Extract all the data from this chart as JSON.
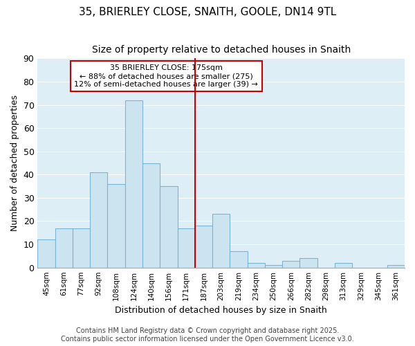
{
  "title": "35, BRIERLEY CLOSE, SNAITH, GOOLE, DN14 9TL",
  "subtitle": "Size of property relative to detached houses in Snaith",
  "xlabel": "Distribution of detached houses by size in Snaith",
  "ylabel": "Number of detached properties",
  "categories": [
    "45sqm",
    "61sqm",
    "77sqm",
    "92sqm",
    "108sqm",
    "124sqm",
    "140sqm",
    "156sqm",
    "171sqm",
    "187sqm",
    "203sqm",
    "219sqm",
    "234sqm",
    "250sqm",
    "266sqm",
    "282sqm",
    "298sqm",
    "313sqm",
    "329sqm",
    "345sqm",
    "361sqm"
  ],
  "values": [
    12,
    17,
    17,
    41,
    36,
    72,
    45,
    35,
    17,
    18,
    23,
    7,
    2,
    1,
    3,
    4,
    0,
    2,
    0,
    0,
    1
  ],
  "bar_color": "#cce4f0",
  "bar_edge_color": "#7ab4d4",
  "vline_x_index": 9,
  "vline_color": "#cc0000",
  "ylim": [
    0,
    90
  ],
  "yticks": [
    0,
    10,
    20,
    30,
    40,
    50,
    60,
    70,
    80,
    90
  ],
  "annotation_text": "35 BRIERLEY CLOSE: 175sqm\n← 88% of detached houses are smaller (275)\n12% of semi-detached houses are larger (39) →",
  "annotation_box_color": "#ffffff",
  "annotation_box_edge_color": "#cc0000",
  "footer_text": "Contains HM Land Registry data © Crown copyright and database right 2025.\nContains public sector information licensed under the Open Government Licence v3.0.",
  "plot_bg_color": "#ddeef7",
  "fig_bg_color": "#ffffff",
  "grid_color": "#ffffff",
  "title_fontsize": 11,
  "subtitle_fontsize": 10
}
